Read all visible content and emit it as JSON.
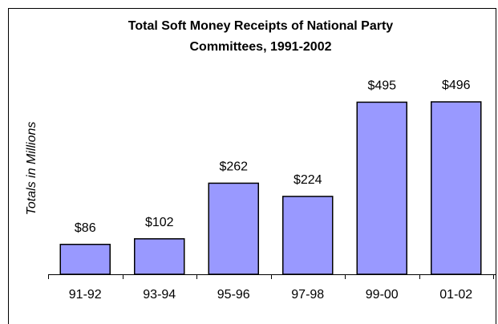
{
  "chart_data": {
    "type": "bar",
    "title": "Total Soft Money Receipts of National Party Committees, 1991-2002",
    "y_label": "Totals in Millions",
    "categories": [
      "91-92",
      "93-94",
      "95-96",
      "97-98",
      "99-00",
      "01-02"
    ],
    "values": [
      86,
      102,
      262,
      224,
      495,
      496
    ],
    "value_labels": [
      "$86",
      "$102",
      "$262",
      "$224",
      "$495",
      "$496"
    ],
    "color": "#9999ff",
    "ylim": [
      0,
      550
    ]
  }
}
